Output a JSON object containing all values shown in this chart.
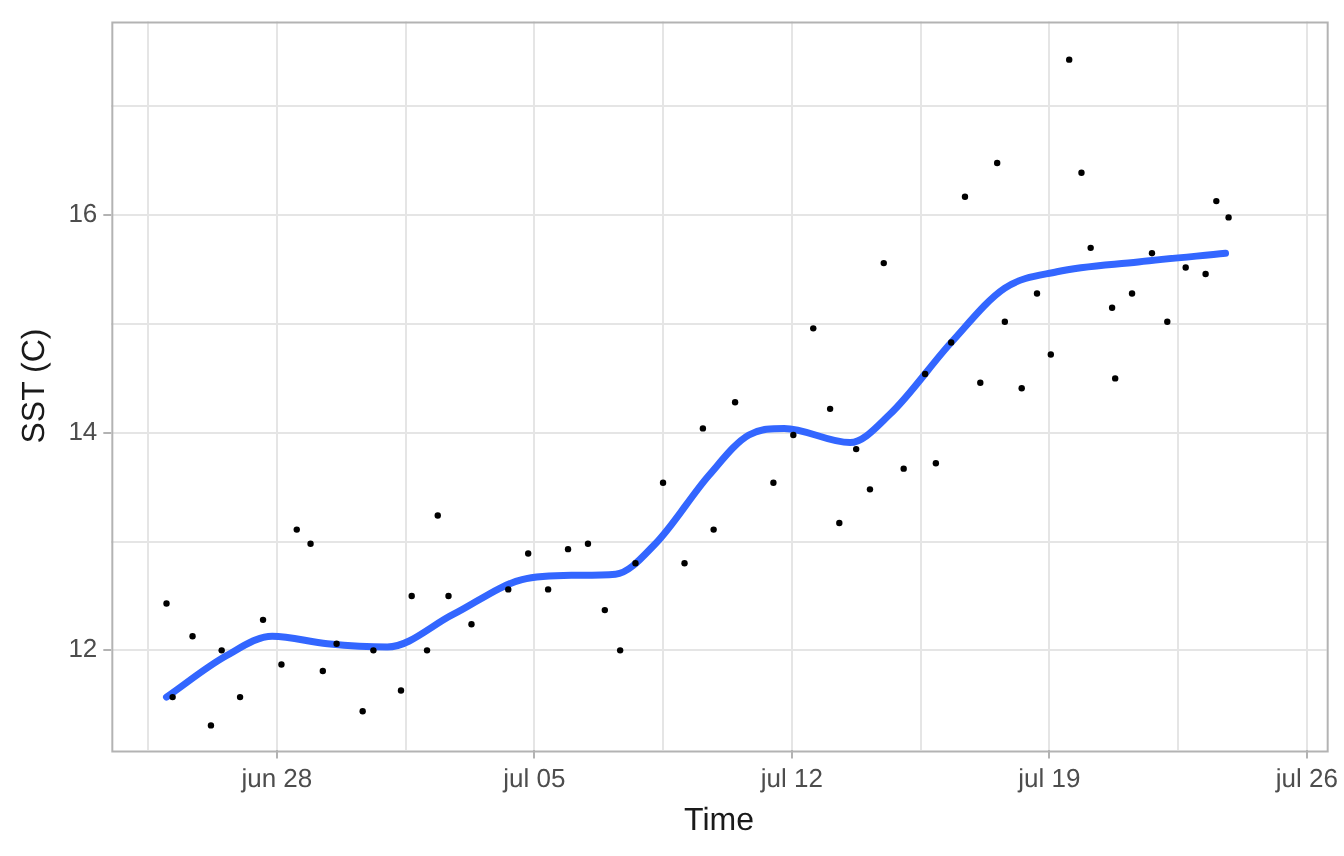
{
  "chart_data": {
    "type": "scatter",
    "xlabel": "Time",
    "ylabel": "SST (C)",
    "grid": true,
    "legend": false,
    "marker": "circle",
    "xlim": [
      "--06-23T12:00",
      "--07-26T13:00"
    ],
    "xticks": [
      {
        "value": "--06-24T12:00",
        "label": null
      },
      {
        "value": "--06-28",
        "label": "jun 28"
      },
      {
        "value": "--07-01T12:00",
        "label": null
      },
      {
        "value": "--07-05",
        "label": "jul 05"
      },
      {
        "value": "--07-08T12:00",
        "label": null
      },
      {
        "value": "--07-12",
        "label": "jul 12"
      },
      {
        "value": "--07-15T12:00",
        "label": null
      },
      {
        "value": "--07-19",
        "label": "jul 19"
      },
      {
        "value": "--07-22T12:00",
        "label": null
      },
      {
        "value": "--07-26",
        "label": "jul 26"
      }
    ],
    "ylim": [
      11.08,
      17.78
    ],
    "yticks": [
      12,
      {
        "value": 13,
        "label": null
      },
      14,
      {
        "value": 15,
        "label": null
      },
      16,
      {
        "value": 17,
        "label": null
      }
    ],
    "series": [
      {
        "color": "#000000",
        "x": [
          "--06-25T00:00",
          "--06-25T04:00",
          "--06-25T17:00",
          "--06-26T05:00",
          "--06-26T12:00",
          "--06-27T00:00",
          "--06-27T15:00",
          "--06-28T03:00",
          "--06-28T13:00",
          "--06-28T22:00",
          "--06-29T06:00",
          "--06-29T15:00",
          "--06-30T08:00",
          "--06-30T15:00",
          "--07-01T09:00",
          "--07-01T16:00",
          "--07-02T02:00",
          "--07-02T09:00",
          "--07-02T16:00",
          "--07-03T07:00",
          "--07-04T07:00",
          "--07-04T20:00",
          "--07-05T09:00",
          "--07-05T22:00",
          "--07-06T11:00",
          "--07-06T22:00",
          "--07-07T08:00",
          "--07-07T18:00",
          "--07-08T12:00",
          "--07-09T02:00",
          "--07-09T14:00",
          "--07-09T21:00",
          "--07-10T11:00",
          "--07-11T12:00",
          "--07-12T01:00",
          "--07-12T14:00",
          "--07-13T01:00",
          "--07-13T07:00",
          "--07-13T18:00",
          "--07-14T03:00",
          "--07-14T12:00",
          "--07-15T01:00",
          "--07-15T15:00",
          "--07-15T22:00",
          "--07-16T08:00",
          "--07-16T17:00",
          "--07-17T03:00",
          "--07-17T14:00",
          "--07-17T19:00",
          "--07-18T06:00",
          "--07-18T16:00",
          "--07-19T01:00",
          "--07-19T13:00",
          "--07-19T21:00",
          "--07-20T03:00",
          "--07-20T17:00",
          "--07-20T19:00",
          "--07-21T06:00",
          "--07-21T19:00",
          "--07-22T05:00",
          "--07-22T17:00",
          "--07-23T06:00",
          "--07-23T13:00",
          "--07-23T21:00"
        ],
        "values": [
          12.43,
          11.57,
          12.13,
          11.31,
          12.0,
          11.57,
          12.28,
          11.87,
          13.11,
          12.98,
          11.81,
          12.06,
          11.44,
          12.0,
          11.63,
          12.5,
          12.0,
          13.24,
          12.5,
          12.24,
          12.56,
          12.89,
          12.56,
          12.93,
          12.98,
          12.37,
          12.0,
          12.8,
          13.54,
          12.8,
          14.04,
          13.11,
          14.28,
          13.54,
          13.98,
          14.96,
          14.22,
          13.17,
          13.85,
          13.48,
          15.56,
          13.67,
          14.54,
          13.72,
          14.83,
          16.17,
          14.46,
          16.48,
          15.02,
          14.41,
          15.28,
          14.72,
          17.43,
          16.39,
          15.7,
          15.15,
          14.5,
          15.28,
          15.65,
          15.02,
          15.52,
          15.46,
          16.13,
          15.98
        ]
      },
      {
        "type": "line",
        "color": "#3366ff",
        "marker": "none",
        "x": [
          "--06-25T00:00",
          "--06-26T15:00",
          "--06-27T21:00",
          "--06-29T09:00",
          "--07-01T00:00",
          "--07-02T19:00",
          "--07-04T16:00",
          "--07-06T02:00",
          "--07-07T05:00",
          "--07-08T07:00",
          "--07-09T18:00",
          "--07-10T20:00",
          "--07-11T19:00",
          "--07-13T14:00",
          "--07-14T16:00",
          "--07-16T08:00",
          "--07-17T19:00",
          "--07-19T05:00",
          "--07-21T10:00",
          "--07-23T19:00"
        ],
        "values": [
          11.57,
          11.95,
          12.13,
          12.06,
          12.03,
          12.33,
          12.65,
          12.69,
          12.7,
          12.98,
          13.61,
          13.98,
          14.04,
          13.91,
          14.17,
          14.83,
          15.33,
          15.48,
          15.57,
          15.65
        ]
      }
    ]
  }
}
